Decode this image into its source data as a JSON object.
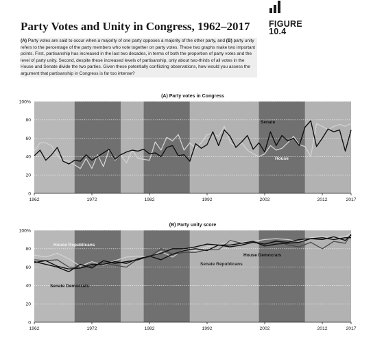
{
  "figure": {
    "label_line1": "FIGURE",
    "label_line2": "10.4",
    "icon": "bar-chart-icon"
  },
  "title": "Party Votes and Unity in Congress, 1962–2017",
  "caption": {
    "part_a_marker": "(A)",
    "part_a_text": " Party votes are said to occur when a majority of one party opposes a majority of the other party, and ",
    "part_b_marker": "(B)",
    "part_b_text": " party unity refers to the percentage of the party members who vote together on party votes. These two graphs make two important points. First, partisanship has increased in the last two decades, in terms of both the proportion of party votes and the level of party unity. Second, despite these increased levels of partisanship, only about two-thirds of all votes in the House and Senate divide the two parties. Given these potentially conflicting observations, how would you assess the argument that partisanship in Congress is far too intense?"
  },
  "colors": {
    "band_dark": "#707070",
    "band_light": "#b2b2b2",
    "line_dark": "#111111",
    "line_mid": "#4a4a4a",
    "line_light": "#d2d2d2"
  },
  "chart_data": [
    {
      "type": "line",
      "title": "(A) Party votes in Congress",
      "xlim": [
        1962,
        2017
      ],
      "ylim": [
        0,
        100
      ],
      "y_ticks": [
        "0",
        "20",
        "40",
        "60",
        "80",
        "100%"
      ],
      "x_ticks": [
        "1962",
        "1972",
        "1982",
        "1992",
        "2002",
        "2012",
        "2017"
      ],
      "shaded_periods": [
        [
          1969,
          1977,
          "dark"
        ],
        [
          1977,
          1981,
          "light"
        ],
        [
          1981,
          1989,
          "dark"
        ],
        [
          1989,
          1993,
          "light"
        ],
        [
          1993,
          2001,
          "light"
        ],
        [
          2001,
          2009,
          "dark"
        ],
        [
          2009,
          2017,
          "light"
        ]
      ],
      "series": [
        {
          "name": "Senate",
          "color": "line_dark",
          "x": [
            1962,
            1963,
            1964,
            1965,
            1966,
            1967,
            1968,
            1969,
            1970,
            1971,
            1972,
            1973,
            1974,
            1975,
            1976,
            1977,
            1978,
            1979,
            1980,
            1981,
            1982,
            1983,
            1984,
            1985,
            1986,
            1987,
            1988,
            1989,
            1990,
            1991,
            1992,
            1993,
            1994,
            1995,
            1996,
            1997,
            1998,
            1999,
            2000,
            2001,
            2002,
            2003,
            2004,
            2005,
            2006,
            2007,
            2008,
            2009,
            2010,
            2011,
            2012,
            2013,
            2014,
            2015,
            2016,
            2017
          ],
          "values": [
            41,
            47,
            36,
            42,
            50,
            35,
            32,
            36,
            35,
            42,
            36,
            40,
            44,
            48,
            37,
            42,
            45,
            47,
            46,
            48,
            43,
            44,
            40,
            50,
            52,
            41,
            42,
            35,
            54,
            49,
            53,
            67,
            52,
            69,
            62,
            50,
            56,
            63,
            48,
            55,
            45,
            67,
            52,
            63,
            57,
            60,
            52,
            72,
            79,
            51,
            60,
            70,
            67,
            69,
            46,
            69
          ]
        },
        {
          "name": "House",
          "color": "line_light",
          "x": [
            1962,
            1963,
            1964,
            1965,
            1966,
            1967,
            1968,
            1969,
            1970,
            1971,
            1972,
            1973,
            1974,
            1975,
            1976,
            1977,
            1978,
            1979,
            1980,
            1981,
            1982,
            1983,
            1984,
            1985,
            1986,
            1987,
            1988,
            1989,
            1990,
            1991,
            1992,
            1993,
            1994,
            1995,
            1996,
            1997,
            1998,
            1999,
            2000,
            2001,
            2002,
            2003,
            2004,
            2005,
            2006,
            2007,
            2008,
            2009,
            2010,
            2011,
            2012,
            2013,
            2014,
            2015,
            2016,
            2017
          ],
          "values": [
            46,
            55,
            55,
            52,
            41,
            36,
            35,
            31,
            27,
            38,
            27,
            42,
            29,
            48,
            36,
            42,
            33,
            47,
            38,
            37,
            36,
            56,
            47,
            61,
            57,
            64,
            47,
            55,
            49,
            55,
            64,
            65,
            62,
            73,
            56,
            50,
            55,
            47,
            43,
            40,
            43,
            52,
            47,
            49,
            55,
            62,
            53,
            51,
            40,
            76,
            73,
            69,
            73,
            75,
            73,
            76
          ]
        }
      ]
    },
    {
      "type": "line",
      "title": "(B) Party unity score",
      "xlim": [
        1962,
        2017
      ],
      "ylim": [
        0,
        100
      ],
      "y_ticks": [
        "0",
        "20",
        "40",
        "60",
        "80",
        "100%"
      ],
      "x_ticks": [
        "1962",
        "1972",
        "1982",
        "1992",
        "2002",
        "2012",
        "2017"
      ],
      "shaded_periods": [
        [
          1969,
          1977,
          "dark"
        ],
        [
          1977,
          1981,
          "light"
        ],
        [
          1981,
          1989,
          "dark"
        ],
        [
          1989,
          1993,
          "light"
        ],
        [
          1993,
          2001,
          "light"
        ],
        [
          2001,
          2009,
          "dark"
        ],
        [
          2009,
          2017,
          "light"
        ]
      ],
      "series": [
        {
          "name": "House Republicans",
          "color": "line_light",
          "x": [
            1962,
            1964,
            1966,
            1968,
            1970,
            1972,
            1974,
            1976,
            1978,
            1980,
            1982,
            1984,
            1986,
            1988,
            1990,
            1992,
            1994,
            1996,
            1998,
            2000,
            2002,
            2004,
            2006,
            2008,
            2010,
            2012,
            2014,
            2016,
            2017
          ],
          "values": [
            73,
            71,
            75,
            69,
            61,
            66,
            62,
            67,
            71,
            72,
            71,
            77,
            71,
            79,
            78,
            82,
            84,
            88,
            87,
            88,
            90,
            91,
            90,
            88,
            92,
            93,
            92,
            93,
            97
          ]
        },
        {
          "name": "Senate Republicans",
          "color": "line_mid",
          "x": [
            1962,
            1964,
            1966,
            1968,
            1970,
            1972,
            1974,
            1976,
            1978,
            1980,
            1982,
            1984,
            1986,
            1988,
            1990,
            1992,
            1994,
            1996,
            1998,
            2000,
            2002,
            2004,
            2006,
            2008,
            2010,
            2012,
            2014,
            2016,
            2017
          ],
          "values": [
            68,
            67,
            68,
            60,
            59,
            61,
            65,
            62,
            60,
            69,
            71,
            80,
            74,
            76,
            76,
            79,
            79,
            89,
            86,
            88,
            85,
            89,
            84,
            82,
            87,
            80,
            88,
            86,
            96
          ]
        },
        {
          "name": "House Democrats",
          "color": "line_dark",
          "x": [
            1962,
            1964,
            1966,
            1968,
            1970,
            1972,
            1974,
            1976,
            1978,
            1980,
            1982,
            1984,
            1986,
            1988,
            1990,
            1992,
            1994,
            1996,
            1998,
            2000,
            2002,
            2004,
            2006,
            2008,
            2010,
            2012,
            2014,
            2016,
            2017
          ],
          "values": [
            65,
            67,
            61,
            58,
            59,
            63,
            63,
            66,
            64,
            69,
            72,
            75,
            80,
            80,
            82,
            85,
            84,
            82,
            84,
            87,
            85,
            88,
            87,
            90,
            91,
            92,
            90,
            92,
            92
          ]
        },
        {
          "name": "Senate Democrats",
          "color": "line_dark",
          "x": [
            1962,
            1964,
            1966,
            1968,
            1970,
            1972,
            1974,
            1976,
            1978,
            1980,
            1982,
            1984,
            1986,
            1988,
            1990,
            1992,
            1994,
            1996,
            1998,
            2000,
            2002,
            2004,
            2006,
            2008,
            2010,
            2012,
            2014,
            2016,
            2017
          ],
          "values": [
            66,
            63,
            60,
            55,
            63,
            59,
            67,
            64,
            66,
            68,
            72,
            68,
            74,
            78,
            80,
            78,
            84,
            84,
            86,
            88,
            83,
            85,
            86,
            87,
            91,
            90,
            93,
            89,
            95
          ]
        }
      ]
    }
  ]
}
